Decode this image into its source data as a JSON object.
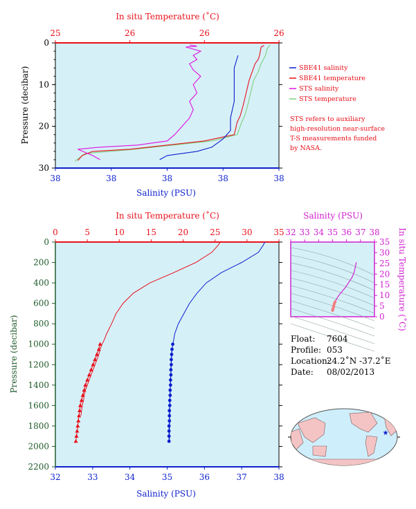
{
  "colors": {
    "plot_bg": "#d6f0f8",
    "salinity": "#0b1fcc",
    "temperature": "#e8101a",
    "sts_salinity": "#e010e0",
    "sts_temperature": "#7ccf7c",
    "pressure_axis": "#1f5a2a",
    "ts_axis": "#d020d0",
    "land": "#f4c4c4",
    "ocean": "#cfeefb"
  },
  "top_chart": {
    "temp_axis_label": "In situ Temperature (˚C)",
    "temp_ticks": [
      "25",
      "26",
      "26",
      "26"
    ],
    "sal_axis_label": "Salinity (PSU)",
    "sal_ticks": [
      "38",
      "38",
      "38",
      "38",
      "38"
    ],
    "pressure_label": "Pressure (decibar)",
    "pressure_ticks": [
      "0",
      "10",
      "20",
      "30"
    ],
    "legend": [
      "SBE41 salinity",
      "SBE41 temperature",
      "STS salinity",
      "STS temperature"
    ],
    "note": [
      "STS refers to auxiliary",
      "high-resolution near-surface",
      "T-S measurements funded",
      "by NASA."
    ]
  },
  "bottom_chart": {
    "temp_axis_label": "In situ Temperature (˚C)",
    "temp_ticks": [
      "0",
      "5",
      "10",
      "15",
      "20",
      "25",
      "30",
      "35"
    ],
    "sal_axis_label": "Salinity (PSU)",
    "sal_ticks": [
      "32",
      "33",
      "34",
      "35",
      "36",
      "37",
      "38"
    ],
    "pressure_label": "Pressure (decibar)",
    "pressure_ticks": [
      "0",
      "200",
      "400",
      "600",
      "800",
      "1000",
      "1200",
      "1400",
      "1600",
      "1800",
      "2000",
      "2200"
    ]
  },
  "ts_chart": {
    "sal_axis_label": "Salinity (PSU)",
    "sal_ticks": [
      "32",
      "33",
      "34",
      "35",
      "36",
      "37",
      "38"
    ],
    "temp_axis_label": "In situ Temperature (˚C)",
    "temp_ticks": [
      "0",
      "5",
      "10",
      "15",
      "20",
      "25",
      "30",
      "35"
    ]
  },
  "float_info": {
    "float_key": "Float:",
    "float_val": "7604",
    "profile_key": "Profile:",
    "profile_val": "053",
    "location_key": "Location:",
    "location_val": "24.2˚N  -37.2˚E",
    "date_key": "Date:",
    "date_val": "08/02/2013"
  },
  "map_marker": "star",
  "chart_data": [
    {
      "type": "line",
      "title": "",
      "x_top_label": "In situ Temperature (˚C)",
      "x_bottom_label": "Salinity (PSU)",
      "ylabel": "Pressure (decibar)",
      "ylim": [
        30,
        0
      ],
      "temp_lim": [
        25.5,
        27.0
      ],
      "sal_lim": [
        37.4,
        38.0
      ],
      "series": [
        {
          "name": "SBE41 salinity",
          "x": [
            37.68,
            37.7,
            37.74,
            37.78,
            37.82,
            37.85,
            37.87,
            37.87,
            37.88,
            37.88,
            37.88,
            37.89
          ],
          "y": [
            28,
            27,
            26.5,
            26,
            25,
            23,
            21,
            18,
            14,
            10,
            6,
            3
          ]
        },
        {
          "name": "SBE41 temperature",
          "x": [
            25.65,
            25.68,
            25.75,
            26.0,
            26.5,
            26.7,
            26.72,
            26.74,
            26.76,
            26.78,
            26.8,
            26.82,
            26.84,
            26.86,
            26.87,
            26.88,
            26.9
          ],
          "y": [
            28.2,
            27.0,
            26.0,
            25.5,
            23.5,
            22.0,
            19.0,
            17.5,
            15.0,
            12.0,
            9.0,
            7.0,
            5.0,
            4.0,
            3.0,
            1.0,
            0.6
          ]
        },
        {
          "name": "STS salinity",
          "x": [
            37.52,
            37.5,
            37.46,
            37.52,
            37.62,
            37.7,
            37.72,
            37.74,
            37.76,
            37.77,
            37.76,
            37.78,
            37.77,
            37.79,
            37.77,
            37.76,
            37.78,
            37.77,
            37.79,
            37.77,
            37.75,
            37.78,
            37.76
          ],
          "y": [
            28,
            27,
            25.5,
            25,
            24.5,
            23.5,
            22,
            20,
            18,
            16,
            14,
            12,
            10,
            8,
            6.5,
            5,
            4,
            3,
            2,
            1.5,
            1,
            0.8,
            0.5
          ]
        },
        {
          "name": "STS temperature",
          "x": [
            25.63,
            25.7,
            26.0,
            26.55,
            26.72,
            26.75,
            26.77,
            26.79,
            26.81,
            26.83,
            26.86,
            26.88,
            26.91,
            26.92,
            26.93,
            26.94
          ],
          "y": [
            28.4,
            26.5,
            25.6,
            23.5,
            22.0,
            19.0,
            17.5,
            15.0,
            12.0,
            9.0,
            7.0,
            5.0,
            3.0,
            1.5,
            1.0,
            0.5
          ]
        }
      ]
    },
    {
      "type": "line",
      "title": "",
      "x_top_label": "In situ Temperature (˚C)",
      "x_bottom_label": "Salinity (PSU)",
      "ylabel": "Pressure (decibar)",
      "ylim": [
        2200,
        0
      ],
      "temp_lim": [
        0,
        35
      ],
      "sal_lim": [
        32,
        38
      ],
      "series": [
        {
          "name": "temperature",
          "x": [
            25.8,
            25.5,
            24.5,
            22.0,
            18.5,
            14.8,
            12.2,
            10.6,
            9.5,
            8.8,
            8.0,
            7.7,
            7.3,
            7.0,
            6.8,
            6.5,
            6.2,
            5.9,
            5.6,
            5.3,
            5.0,
            4.7,
            4.5,
            4.4,
            4.2,
            4.1,
            4.0
          ],
          "y": [
            0,
            30,
            100,
            200,
            300,
            400,
            500,
            600,
            700,
            800,
            900,
            950,
            1000,
            1050,
            1100,
            1150,
            1200,
            1250,
            1300,
            1350,
            1400,
            1450,
            1500,
            1550,
            1600,
            1650,
            1700
          ]
        },
        {
          "name": "salinity",
          "x": [
            37.62,
            37.58,
            37.45,
            37.0,
            36.45,
            36.05,
            35.8,
            35.6,
            35.45,
            35.3,
            35.2,
            35.18,
            35.15,
            35.13,
            35.12,
            35.11,
            35.11,
            35.1,
            35.1,
            35.09,
            35.09,
            35.08,
            35.08,
            35.07,
            35.07,
            35.06
          ],
          "y": [
            0,
            30,
            100,
            200,
            300,
            400,
            500,
            600,
            700,
            800,
            900,
            950,
            1000,
            1050,
            1100,
            1150,
            1200,
            1250,
            1300,
            1350,
            1400,
            1450,
            1500,
            1550,
            1600,
            1950
          ]
        },
        {
          "name": "temperature_deep",
          "x": [
            7.0,
            6.8,
            6.5,
            6.2,
            5.9,
            5.6,
            5.3,
            5.0,
            4.7,
            4.5,
            4.3,
            4.1,
            3.9,
            3.8,
            3.7,
            3.6,
            3.5,
            3.4,
            3.3,
            3.2,
            3.1,
            3.0
          ],
          "y": [
            1000,
            1050,
            1100,
            1150,
            1200,
            1250,
            1300,
            1350,
            1400,
            1450,
            1500,
            1550,
            1600,
            1650,
            1700,
            1750,
            1800,
            1850,
            1900,
            1950,
            1950,
            1950
          ]
        },
        {
          "name": "salinity_deep",
          "x": [
            35.15,
            35.13,
            35.12,
            35.11,
            35.11,
            35.1,
            35.1,
            35.09,
            35.09,
            35.08,
            35.08,
            35.07,
            35.07,
            35.06,
            35.06,
            35.06,
            35.05,
            35.05,
            35.05,
            35.05
          ],
          "y": [
            1000,
            1050,
            1100,
            1150,
            1200,
            1250,
            1300,
            1350,
            1400,
            1450,
            1500,
            1550,
            1600,
            1650,
            1700,
            1750,
            1800,
            1850,
            1900,
            1950
          ]
        }
      ]
    },
    {
      "type": "scatter",
      "title": "",
      "xlabel": "Salinity (PSU)",
      "ylabel": "In situ Temperature (˚C)",
      "xlim": [
        32,
        38
      ],
      "ylim": [
        0,
        35
      ],
      "series": [
        {
          "name": "T-S",
          "x": [
            35.0,
            35.02,
            35.05,
            35.08,
            35.12,
            35.18,
            35.3,
            35.5,
            35.7,
            35.95,
            36.2,
            36.4,
            36.55,
            36.7
          ],
          "y": [
            3.0,
            3.5,
            4.2,
            5.0,
            6.0,
            7.0,
            8.5,
            10.5,
            12.0,
            14.0,
            16.5,
            18.5,
            21.0,
            25.5
          ]
        }
      ]
    }
  ]
}
